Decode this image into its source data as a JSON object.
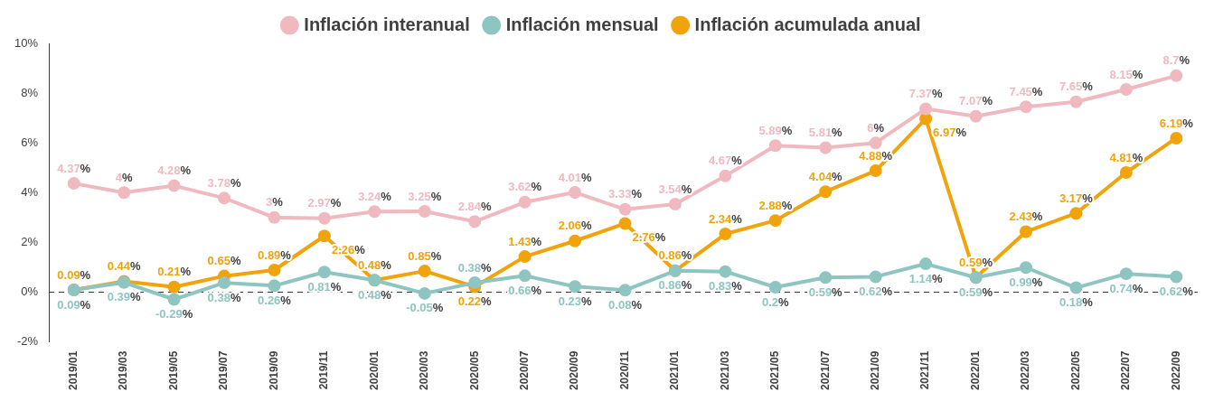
{
  "chart_data": {
    "type": "line",
    "categories": [
      "2019/01",
      "2019/03",
      "2019/05",
      "2019/07",
      "2019/09",
      "2019/11",
      "2020/01",
      "2020/03",
      "2020/05",
      "2020/07",
      "2020/09",
      "2020/11",
      "2021/01",
      "2021/03",
      "2021/05",
      "2021/07",
      "2021/09",
      "2021/11",
      "2022/01",
      "2022/03",
      "2022/05",
      "2022/07",
      "2022/09"
    ],
    "series": [
      {
        "name": "Inflación interanual",
        "color": "#f0b9c0",
        "values": [
          4.37,
          4,
          4.28,
          3.78,
          3,
          2.97,
          3.24,
          3.25,
          2.84,
          3.62,
          4.01,
          3.33,
          3.54,
          4.67,
          5.89,
          5.81,
          6,
          7.37,
          7.07,
          7.45,
          7.65,
          8.15,
          8.7
        ],
        "value_labels": [
          "4.37%",
          "4%",
          "4.28%",
          "3.78%",
          "3%",
          "2.97%",
          "3.24%",
          "3.25%",
          "2.84%",
          "3.62%",
          "4.01%",
          "3.33%",
          "3.54%",
          "4.67%",
          "5.89%",
          "5.81%",
          "6%",
          "7.37%",
          "7.07%",
          "7.45%",
          "7.65%",
          "8.15%",
          "8.7%"
        ]
      },
      {
        "name": "Inflación mensual",
        "color": "#8ec5c1",
        "values": [
          0.09,
          0.39,
          -0.29,
          0.38,
          0.26,
          0.81,
          0.48,
          -0.05,
          0.38,
          0.66,
          0.23,
          0.08,
          0.86,
          0.83,
          0.2,
          0.59,
          0.62,
          1.14,
          0.59,
          0.99,
          0.18,
          0.74,
          0.62
        ],
        "value_labels": [
          "0.09%",
          "0.39%",
          "-0.29%",
          "0.38%",
          "0.26%",
          "0.81%",
          "0.48%",
          "-0.05%",
          "0.38%",
          "0.66%",
          "0.23%",
          "0.08%",
          "0.86%",
          "0.83%",
          "0.2%",
          "0.59%",
          "0.62%",
          "1.14%",
          "0.59%",
          "0.99%",
          "0.18%",
          "0.74%",
          "0.62%"
        ]
      },
      {
        "name": "Inflación acumulada anual",
        "color": "#f0a30a",
        "values": [
          0.09,
          0.44,
          0.21,
          0.65,
          0.89,
          2.26,
          0.48,
          0.85,
          0.22,
          1.43,
          2.06,
          2.76,
          0.86,
          2.34,
          2.88,
          4.04,
          4.88,
          6.97,
          0.59,
          2.43,
          3.17,
          4.81,
          6.19
        ],
        "value_labels": [
          "0.09%",
          "0.44%",
          "0.21%",
          "0.65%",
          "0.89%",
          "2.26%",
          "0.48%",
          "0.85%",
          "0.22%",
          "1.43%",
          "2.06%",
          "2.76%",
          "0.86%",
          "2.34%",
          "2.88%",
          "4.04%",
          "4.88%",
          "6.97%",
          "0.59%",
          "2.43%",
          "3.17%",
          "4.81%",
          "6.19%"
        ]
      }
    ],
    "ylim": [
      -2,
      10
    ],
    "yticks": [
      {
        "value": -2,
        "label": "-2%"
      },
      {
        "value": 0,
        "label": "0%"
      },
      {
        "value": 2,
        "label": "2%"
      },
      {
        "value": 4,
        "label": "4%"
      },
      {
        "value": 6,
        "label": "6%"
      },
      {
        "value": 8,
        "label": "8%"
      },
      {
        "value": 10,
        "label": "10%"
      }
    ],
    "ref_lines": [
      {
        "axis": "y",
        "value": 0,
        "line_style": "dashed",
        "color": "#333333"
      }
    ],
    "grid": false,
    "legend": "top",
    "marker": "circle",
    "line_style": "solid"
  }
}
